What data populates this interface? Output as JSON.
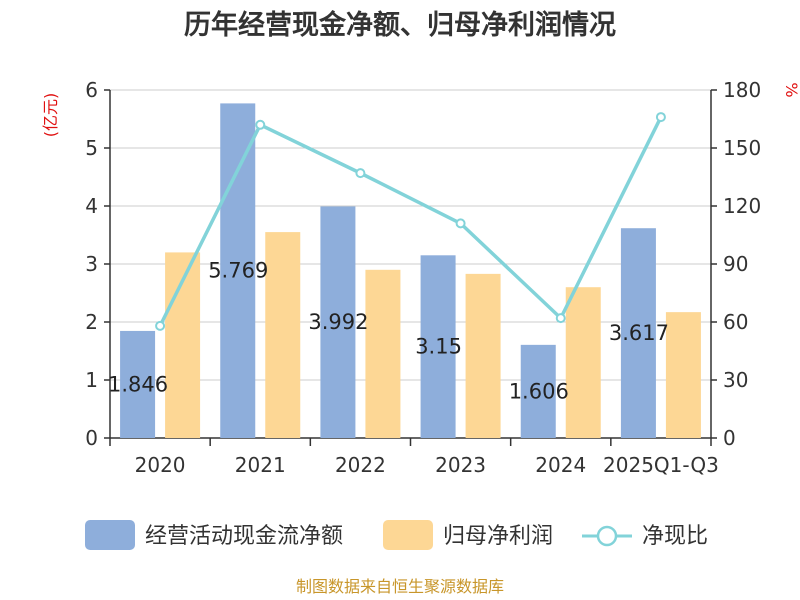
{
  "chart_data": {
    "type": "bar",
    "title": "历年经营现金净额、归母净利润情况",
    "categories": [
      "2020",
      "2021",
      "2022",
      "2023",
      "2024",
      "2025Q1-Q3"
    ],
    "series": [
      {
        "name": "经营活动现金流净额",
        "type": "bar",
        "axis": "left",
        "color": "#8eaedb",
        "values": [
          1.846,
          5.769,
          3.992,
          3.15,
          1.606,
          3.617
        ],
        "labels": [
          "1.846",
          "5.769",
          "3.992",
          "3.15",
          "1.606",
          "3.617"
        ]
      },
      {
        "name": "归母净利润",
        "type": "bar",
        "axis": "left",
        "color": "#fdd795",
        "values": [
          3.2,
          3.55,
          2.9,
          2.83,
          2.6,
          2.17
        ]
      },
      {
        "name": "净现比",
        "type": "line",
        "axis": "right",
        "color": "#82d3d9",
        "values": [
          58,
          162,
          137,
          111,
          62,
          166
        ]
      }
    ],
    "y_left": {
      "label": "(亿元)",
      "min": 0,
      "max": 6,
      "ticks": [
        "0",
        "1",
        "2",
        "3",
        "4",
        "5",
        "6"
      ]
    },
    "y_right": {
      "label": "%",
      "min": 0,
      "max": 180,
      "ticks": [
        "0",
        "30",
        "60",
        "90",
        "120",
        "150",
        "180"
      ]
    },
    "grid": true,
    "legend_position": "bottom"
  },
  "source": "制图数据来自恒生聚源数据库"
}
